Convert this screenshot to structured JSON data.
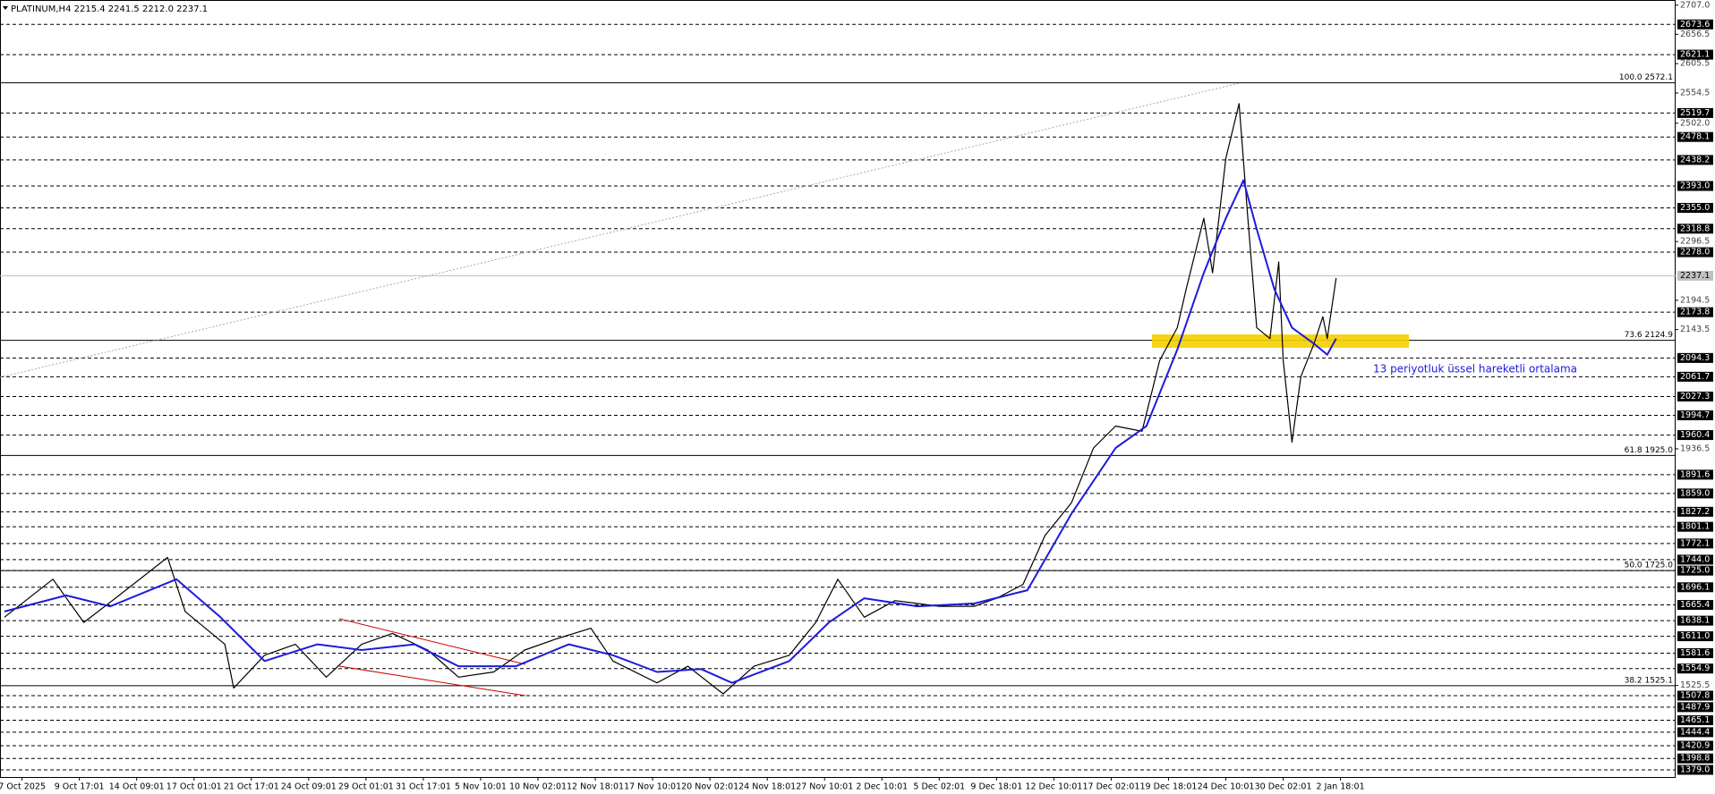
{
  "chart_data": {
    "type": "line",
    "title": "PLATINUM,H4  2215.4 2241.5 2212.0 2237.1",
    "annotation": "13 periyotluk üssel hareketli ortalama",
    "xlim": [
      0,
      380
    ],
    "ylim": [
      1365,
      2716
    ],
    "xticks": [
      {
        "value": 5,
        "label": "7 Oct 2025"
      },
      {
        "value": 18,
        "label": "9 Oct 17:01"
      },
      {
        "value": 31,
        "label": "14 Oct 09:01"
      },
      {
        "value": 44,
        "label": "17 Oct 01:01"
      },
      {
        "value": 57,
        "label": "21 Oct 17:01"
      },
      {
        "value": 70,
        "label": "24 Oct 09:01"
      },
      {
        "value": 83,
        "label": "29 Oct 01:01"
      },
      {
        "value": 96,
        "label": "31 Oct 17:01"
      },
      {
        "value": 109,
        "label": "5 Nov 10:01"
      },
      {
        "value": 122,
        "label": "10 Nov 02:01"
      },
      {
        "value": 135,
        "label": "12 Nov 18:01"
      },
      {
        "value": 148,
        "label": "17 Nov 10:01"
      },
      {
        "value": 161,
        "label": "20 Nov 02:01"
      },
      {
        "value": 174,
        "label": "24 Nov 18:01"
      },
      {
        "value": 187,
        "label": "27 Nov 10:01"
      },
      {
        "value": 200,
        "label": "2 Dec 10:01"
      },
      {
        "value": 213,
        "label": "5 Dec 02:01"
      },
      {
        "value": 226,
        "label": "9 Dec 18:01"
      },
      {
        "value": 239,
        "label": "12 Dec 10:01"
      },
      {
        "value": 252,
        "label": "17 Dec 02:01"
      },
      {
        "value": 265,
        "label": "19 Dec 18:01"
      },
      {
        "value": 278,
        "label": "24 Dec 10:01"
      },
      {
        "value": 291,
        "label": "30 Dec 02:01"
      },
      {
        "value": 304,
        "label": "2 Jan 18:01"
      }
    ],
    "yticks": [
      {
        "value": 2707,
        "label": "2707.0"
      },
      2656.5,
      2605.5,
      2554.5,
      {
        "value": 2502,
        "label": "2502.0"
      },
      2296.5,
      2194.5,
      2143.5,
      1936.5,
      1525.5
    ],
    "levels": [
      2673.6,
      2621.1,
      2519.7,
      2478.1,
      2438.2,
      {
        "value": 2393,
        "label": "2393.0"
      },
      {
        "value": 2355,
        "label": "2355.0"
      },
      2318.8,
      {
        "value": 2278,
        "label": "2278.0"
      },
      2173.8,
      2094.3,
      2061.7,
      2027.3,
      1994.7,
      1960.4,
      1891.6,
      {
        "value": 1859,
        "label": "1859.0"
      },
      1827.2,
      1801.1,
      1772.1,
      {
        "value": 1744,
        "label": "1744.0"
      },
      {
        "value": 1725,
        "label": "1725.0"
      },
      1696.1,
      1665.4,
      1638.1,
      {
        "value": 1611,
        "label": "1611.0"
      },
      1581.6,
      1554.9,
      1507.8,
      1487.9,
      1465.1,
      1444.4,
      1420.9,
      1398.8,
      {
        "value": 1379,
        "label": "1379.0"
      }
    ],
    "fib_levels": [
      {
        "value": 2572.1,
        "label": "100.0 2572.1"
      },
      {
        "value": 2124.9,
        "label": "73.6 2124.9"
      },
      {
        "value": 1925,
        "label": "61.8 1925.0"
      },
      {
        "value": 1725,
        "label": "50.0 1725.0"
      },
      {
        "value": 1525.1,
        "label": "38.2 1525.1"
      }
    ],
    "current_price": 2237.1,
    "series": [
      {
        "color": "#000000",
        "x": [
          1,
          12,
          19,
          27,
          38,
          42,
          51,
          53,
          60,
          67,
          74,
          82,
          89,
          97,
          104,
          112,
          119,
          126,
          134,
          139,
          149,
          156,
          164,
          171,
          179,
          185,
          190,
          196,
          203,
          213,
          221,
          226,
          232,
          237,
          243,
          248,
          253,
          259,
          263,
          267,
          269,
          273,
          275,
          278,
          281,
          283,
          285,
          288,
          290,
          291,
          293,
          295,
          298,
          300,
          301,
          303
        ],
        "values": [
          1644,
          1710,
          1635,
          1682,
          1748,
          1654,
          1597,
          1521,
          1578,
          1597,
          1540,
          1597,
          1616,
          1587,
          1540,
          1549,
          1587,
          1606,
          1625,
          1568,
          1530,
          1559,
          1511,
          1559,
          1578,
          1635,
          1710,
          1644,
          1673,
          1663,
          1663,
          1677,
          1701,
          1786,
          1843,
          1938,
          1976,
          1967,
          2090,
          2147,
          2214,
          2337,
          2242,
          2441,
          2536,
          2337,
          2147,
          2128,
          2261,
          2090,
          1948,
          2062,
          2119,
          2166,
          2128,
          2233
        ]
      },
      {
        "name": "13 periyotluk üssel hareketli ortalama",
        "color": "#1c1cdc",
        "x": [
          1,
          15,
          25,
          40,
          50,
          60,
          72,
          82,
          94,
          104,
          117,
          129,
          139,
          149,
          159,
          166,
          179,
          188,
          196,
          208,
          221,
          233,
          243,
          253,
          260,
          267,
          273,
          278,
          282,
          285,
          289,
          293,
          298,
          301,
          303
        ],
        "values": [
          1654,
          1682,
          1663,
          1710,
          1644,
          1568,
          1597,
          1587,
          1597,
          1559,
          1559,
          1597,
          1578,
          1549,
          1554,
          1530,
          1568,
          1635,
          1677,
          1663,
          1668,
          1691,
          1824,
          1938,
          1976,
          2109,
          2242,
          2337,
          2403,
          2318,
          2214,
          2147,
          2119,
          2100,
          2128
        ]
      }
    ]
  }
}
